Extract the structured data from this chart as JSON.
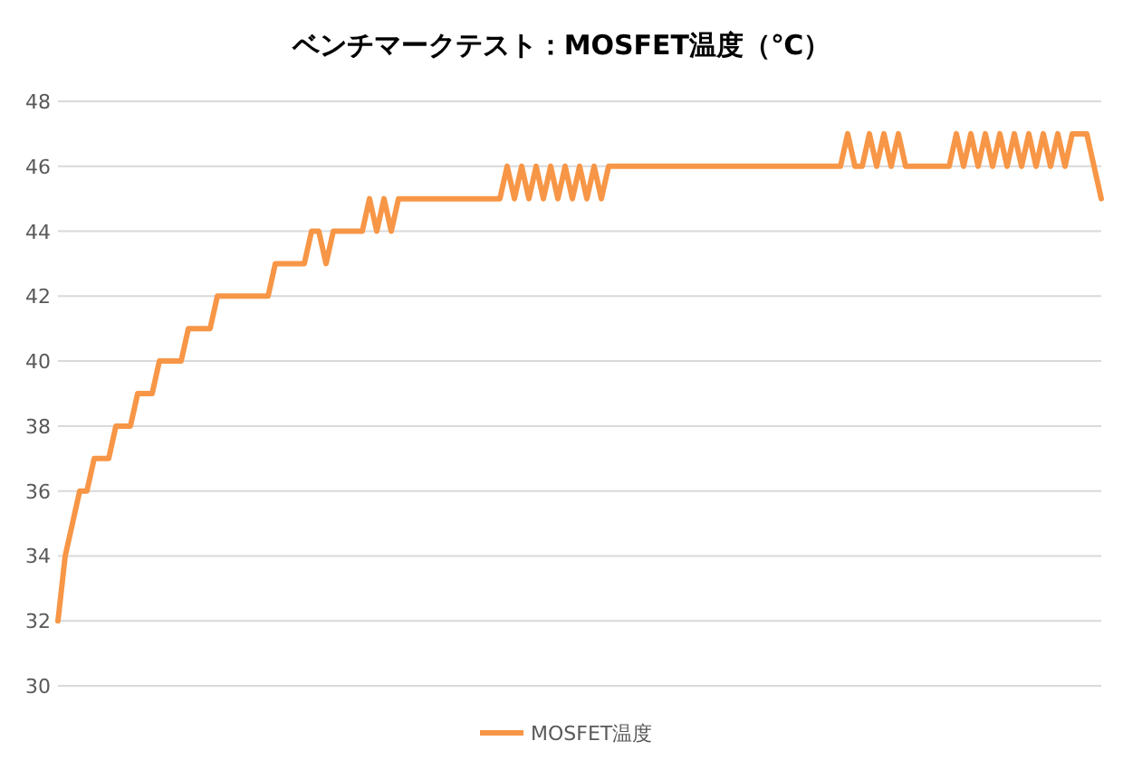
{
  "chart_data": {
    "type": "line",
    "title": "ベンチマークテスト：MOSFET温度（℃）",
    "categories": [
      null,
      null,
      null,
      null,
      null,
      null,
      null,
      null,
      null,
      null,
      null,
      null,
      null,
      null,
      null,
      null,
      null,
      null,
      null,
      null,
      null,
      null,
      null,
      null,
      null,
      null,
      null,
      null,
      null,
      null,
      null,
      null,
      null,
      null,
      null,
      null,
      null,
      null,
      null,
      null,
      null,
      null,
      null,
      null,
      null,
      null,
      null,
      null,
      null,
      null,
      null,
      null,
      null,
      null,
      null,
      null,
      null,
      null,
      null,
      null,
      null,
      null,
      null,
      null,
      null,
      null,
      null,
      null,
      null,
      null,
      null,
      null,
      null,
      null,
      null,
      null,
      null,
      null,
      null,
      null,
      null,
      null,
      null,
      null,
      null,
      null,
      null,
      null,
      null,
      null,
      null,
      null,
      null,
      null,
      null,
      null,
      null,
      null,
      null,
      null,
      null,
      null,
      null,
      null,
      null,
      null,
      null,
      null,
      null,
      null,
      null,
      null,
      null,
      null,
      null,
      null,
      null,
      null,
      null,
      null,
      null,
      null,
      null,
      null,
      null,
      null,
      null,
      null,
      null,
      null,
      null,
      null,
      null,
      null,
      null,
      null,
      null,
      null,
      null,
      null,
      null,
      null,
      null,
      null,
      null
    ],
    "series": [
      {
        "name": "MOSFET温度",
        "color": "#f79646",
        "values": [
          32,
          34,
          35,
          36,
          36,
          37,
          37,
          37,
          38,
          38,
          38,
          39,
          39,
          39,
          40,
          40,
          40,
          40,
          41,
          41,
          41,
          41,
          42,
          42,
          42,
          42,
          42,
          42,
          42,
          42,
          43,
          43,
          43,
          43,
          43,
          44,
          44,
          43,
          44,
          44,
          44,
          44,
          44,
          45,
          44,
          45,
          44,
          45,
          45,
          45,
          45,
          45,
          45,
          45,
          45,
          45,
          45,
          45,
          45,
          45,
          45,
          45,
          46,
          45,
          46,
          45,
          46,
          45,
          46,
          45,
          46,
          45,
          46,
          45,
          46,
          45,
          46,
          46,
          46,
          46,
          46,
          46,
          46,
          46,
          46,
          46,
          46,
          46,
          46,
          46,
          46,
          46,
          46,
          46,
          46,
          46,
          46,
          46,
          46,
          46,
          46,
          46,
          46,
          46,
          46,
          46,
          46,
          46,
          46,
          47,
          46,
          46,
          47,
          46,
          47,
          46,
          47,
          46,
          46,
          46,
          46,
          46,
          46,
          46,
          47,
          46,
          47,
          46,
          47,
          46,
          47,
          46,
          47,
          46,
          47,
          46,
          47,
          46,
          47,
          46,
          47,
          47,
          47,
          46,
          45
        ]
      }
    ],
    "ylim": [
      30,
      48
    ],
    "yticks": [
      30,
      32,
      34,
      36,
      38,
      40,
      42,
      44,
      46,
      48
    ],
    "grid": "y",
    "legend": "bottom",
    "tick_labels": "y",
    "marker": "none",
    "line_style": "solid"
  }
}
